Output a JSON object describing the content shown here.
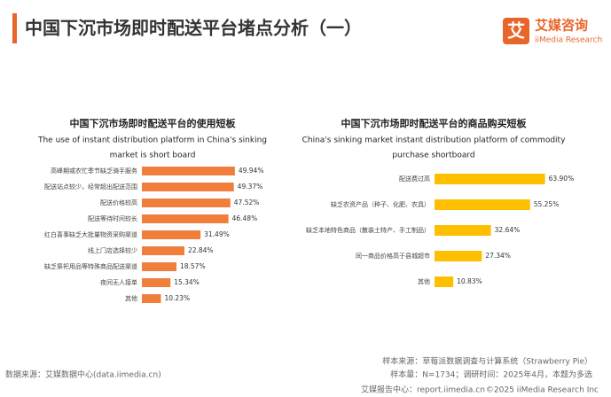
{
  "header": {
    "title": "中国下沉市场即时配送平台堵点分析（一）",
    "logo_cn": "艾媒咨询",
    "logo_en": "iiMedia Research",
    "logo_mark": "艾"
  },
  "chart_data": [
    {
      "type": "bar",
      "orientation": "horizontal",
      "title": "中国下沉市场即时配送平台的使用短板",
      "subtitle": [
        "The use of instant distribution platform in China's sinking",
        "market is short board"
      ],
      "color": "#f07f3c",
      "categories": [
        "高峰期或农忙季节缺乏骑手服务",
        "配送站点较少，经常超出配送范围",
        "配送价格较高",
        "配送等待时间较长",
        "红白喜事缺乏大批量物资采购渠道",
        "线上门店选择较少",
        "缺乏祭祀用品等特殊商品配送渠道",
        "夜间无人接单",
        "其他"
      ],
      "values": [
        49.94,
        49.37,
        47.52,
        46.48,
        31.49,
        22.84,
        18.57,
        15.34,
        10.23
      ],
      "value_labels": [
        "49.94%",
        "49.37%",
        "47.52%",
        "46.48%",
        "31.49%",
        "22.84%",
        "18.57%",
        "15.34%",
        "10.23%"
      ]
    },
    {
      "type": "bar",
      "orientation": "horizontal",
      "title": "中国下沉市场即时配送平台的商品购买短板",
      "subtitle": [
        "China's sinking market instant distribution platform of commodity",
        "purchase shortboard"
      ],
      "color": "#fdbf00",
      "categories": [
        "配送费过高",
        "缺乏农资产品（种子、化肥、农具）",
        "缺乏本地特色商品（散装土特产、手工制品）",
        "同一商品价格高于县城超市",
        "其他"
      ],
      "values": [
        63.9,
        55.25,
        32.64,
        27.34,
        10.83
      ],
      "value_labels": [
        "63.90%",
        "55.25%",
        "32.64%",
        "27.34%",
        "10.83%"
      ]
    }
  ],
  "footer": {
    "source": "数据来源：艾媒数据中心(data.iimedia.cn)",
    "sample_source": "样本来源：草莓派数据调查与计算系统（Strawberry Pie）",
    "sample_size": "样本量：N=1734；调研时间：2025年4月，本题为多选",
    "report_center": "艾媒报告中心：report.iimedia.cn",
    "copyright": "©2025  iiMedia Research  Inc"
  }
}
